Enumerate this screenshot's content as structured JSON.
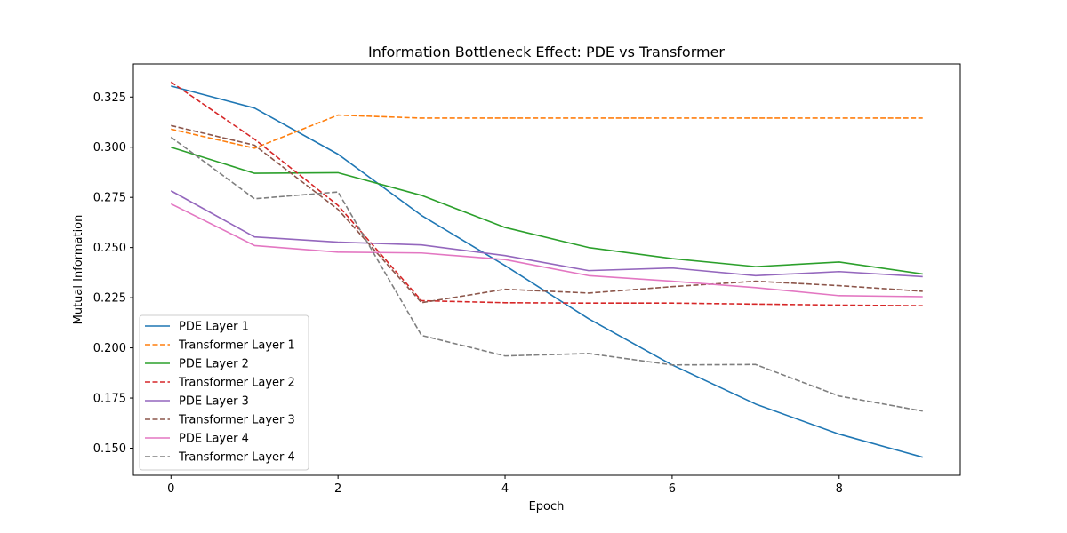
{
  "chart_data": {
    "type": "line",
    "title": "Information Bottleneck Effect: PDE vs Transformer",
    "xlabel": "Epoch",
    "ylabel": "Mutual Information",
    "xlim": [
      -0.45,
      9.45
    ],
    "ylim": [
      0.1365,
      0.3415
    ],
    "xticks": [
      0,
      2,
      4,
      6,
      8
    ],
    "xtick_labels": [
      "0",
      "2",
      "4",
      "6",
      "8"
    ],
    "yticks": [
      0.15,
      0.175,
      0.2,
      0.225,
      0.25,
      0.275,
      0.3,
      0.325
    ],
    "ytick_labels": [
      "0.150",
      "0.175",
      "0.200",
      "0.225",
      "0.250",
      "0.275",
      "0.300",
      "0.325"
    ],
    "grid": false,
    "legend_position": "lower-left",
    "x": [
      0,
      1,
      2,
      3,
      4,
      5,
      6,
      7,
      8,
      9
    ],
    "series": [
      {
        "name": "PDE Layer 1",
        "color": "#1f77b4",
        "dash": "solid",
        "values": [
          0.3305,
          0.3195,
          0.2965,
          0.266,
          0.241,
          0.2145,
          0.1915,
          0.172,
          0.157,
          0.1455
        ]
      },
      {
        "name": "Transformer Layer 1",
        "color": "#ff7f0e",
        "dash": "dashed",
        "values": [
          0.309,
          0.2995,
          0.316,
          0.3145,
          0.3145,
          0.3145,
          0.3145,
          0.3145,
          0.3145,
          0.3145
        ]
      },
      {
        "name": "PDE Layer 2",
        "color": "#2ca02c",
        "dash": "solid",
        "values": [
          0.3,
          0.287,
          0.2873,
          0.276,
          0.26,
          0.25,
          0.2445,
          0.2405,
          0.2428,
          0.2368
        ]
      },
      {
        "name": "Transformer Layer 2",
        "color": "#d62728",
        "dash": "dashed",
        "values": [
          0.3325,
          0.304,
          0.271,
          0.2235,
          0.2225,
          0.2223,
          0.2223,
          0.2218,
          0.2213,
          0.221
        ]
      },
      {
        "name": "PDE Layer 3",
        "color": "#9467bd",
        "dash": "solid",
        "values": [
          0.2783,
          0.2553,
          0.2527,
          0.2513,
          0.246,
          0.2385,
          0.2398,
          0.236,
          0.238,
          0.2355
        ]
      },
      {
        "name": "Transformer Layer 3",
        "color": "#8c564b",
        "dash": "dashed",
        "values": [
          0.3108,
          0.301,
          0.269,
          0.2225,
          0.2292,
          0.2273,
          0.2305,
          0.2332,
          0.231,
          0.2282
        ]
      },
      {
        "name": "PDE Layer 4",
        "color": "#e377c2",
        "dash": "solid",
        "values": [
          0.2718,
          0.251,
          0.2477,
          0.2473,
          0.244,
          0.236,
          0.2332,
          0.23,
          0.226,
          0.2255
        ]
      },
      {
        "name": "Transformer Layer 4",
        "color": "#7f7f7f",
        "dash": "dashed",
        "values": [
          0.305,
          0.2743,
          0.2777,
          0.2062,
          0.196,
          0.1972,
          0.1915,
          0.1917,
          0.176,
          0.1685
        ]
      }
    ]
  }
}
